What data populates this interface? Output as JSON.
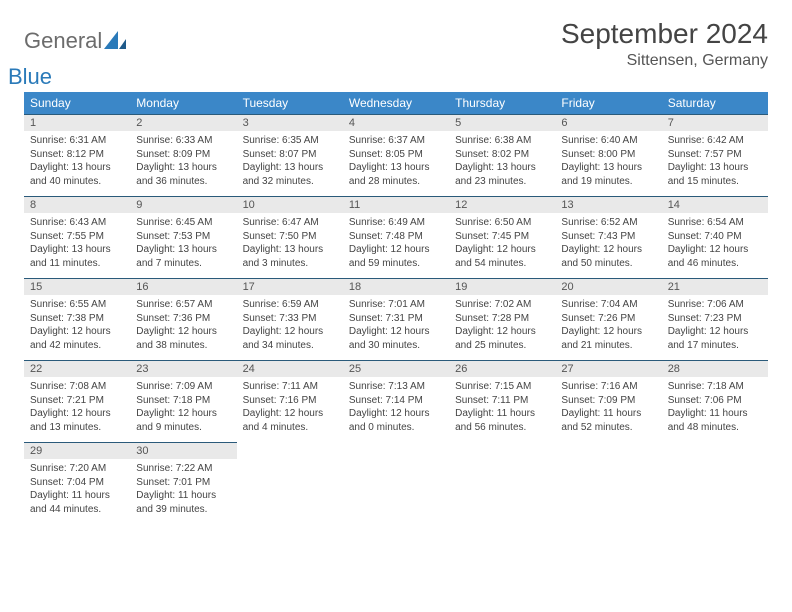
{
  "logo": {
    "text1": "General",
    "text2": "Blue"
  },
  "title": "September 2024",
  "location": "Sittensen, Germany",
  "colors": {
    "header_bg": "#3b87c8",
    "header_text": "#ffffff",
    "daynum_bg": "#e9e9e9",
    "daynum_border": "#2a5a7a",
    "logo_gray": "#6c6c6c",
    "logo_blue": "#2a7ab9"
  },
  "weekdays": [
    "Sunday",
    "Monday",
    "Tuesday",
    "Wednesday",
    "Thursday",
    "Friday",
    "Saturday"
  ],
  "weeks": [
    [
      {
        "n": "1",
        "sr": "Sunrise: 6:31 AM",
        "ss": "Sunset: 8:12 PM",
        "d1": "Daylight: 13 hours",
        "d2": "and 40 minutes."
      },
      {
        "n": "2",
        "sr": "Sunrise: 6:33 AM",
        "ss": "Sunset: 8:09 PM",
        "d1": "Daylight: 13 hours",
        "d2": "and 36 minutes."
      },
      {
        "n": "3",
        "sr": "Sunrise: 6:35 AM",
        "ss": "Sunset: 8:07 PM",
        "d1": "Daylight: 13 hours",
        "d2": "and 32 minutes."
      },
      {
        "n": "4",
        "sr": "Sunrise: 6:37 AM",
        "ss": "Sunset: 8:05 PM",
        "d1": "Daylight: 13 hours",
        "d2": "and 28 minutes."
      },
      {
        "n": "5",
        "sr": "Sunrise: 6:38 AM",
        "ss": "Sunset: 8:02 PM",
        "d1": "Daylight: 13 hours",
        "d2": "and 23 minutes."
      },
      {
        "n": "6",
        "sr": "Sunrise: 6:40 AM",
        "ss": "Sunset: 8:00 PM",
        "d1": "Daylight: 13 hours",
        "d2": "and 19 minutes."
      },
      {
        "n": "7",
        "sr": "Sunrise: 6:42 AM",
        "ss": "Sunset: 7:57 PM",
        "d1": "Daylight: 13 hours",
        "d2": "and 15 minutes."
      }
    ],
    [
      {
        "n": "8",
        "sr": "Sunrise: 6:43 AM",
        "ss": "Sunset: 7:55 PM",
        "d1": "Daylight: 13 hours",
        "d2": "and 11 minutes."
      },
      {
        "n": "9",
        "sr": "Sunrise: 6:45 AM",
        "ss": "Sunset: 7:53 PM",
        "d1": "Daylight: 13 hours",
        "d2": "and 7 minutes."
      },
      {
        "n": "10",
        "sr": "Sunrise: 6:47 AM",
        "ss": "Sunset: 7:50 PM",
        "d1": "Daylight: 13 hours",
        "d2": "and 3 minutes."
      },
      {
        "n": "11",
        "sr": "Sunrise: 6:49 AM",
        "ss": "Sunset: 7:48 PM",
        "d1": "Daylight: 12 hours",
        "d2": "and 59 minutes."
      },
      {
        "n": "12",
        "sr": "Sunrise: 6:50 AM",
        "ss": "Sunset: 7:45 PM",
        "d1": "Daylight: 12 hours",
        "d2": "and 54 minutes."
      },
      {
        "n": "13",
        "sr": "Sunrise: 6:52 AM",
        "ss": "Sunset: 7:43 PM",
        "d1": "Daylight: 12 hours",
        "d2": "and 50 minutes."
      },
      {
        "n": "14",
        "sr": "Sunrise: 6:54 AM",
        "ss": "Sunset: 7:40 PM",
        "d1": "Daylight: 12 hours",
        "d2": "and 46 minutes."
      }
    ],
    [
      {
        "n": "15",
        "sr": "Sunrise: 6:55 AM",
        "ss": "Sunset: 7:38 PM",
        "d1": "Daylight: 12 hours",
        "d2": "and 42 minutes."
      },
      {
        "n": "16",
        "sr": "Sunrise: 6:57 AM",
        "ss": "Sunset: 7:36 PM",
        "d1": "Daylight: 12 hours",
        "d2": "and 38 minutes."
      },
      {
        "n": "17",
        "sr": "Sunrise: 6:59 AM",
        "ss": "Sunset: 7:33 PM",
        "d1": "Daylight: 12 hours",
        "d2": "and 34 minutes."
      },
      {
        "n": "18",
        "sr": "Sunrise: 7:01 AM",
        "ss": "Sunset: 7:31 PM",
        "d1": "Daylight: 12 hours",
        "d2": "and 30 minutes."
      },
      {
        "n": "19",
        "sr": "Sunrise: 7:02 AM",
        "ss": "Sunset: 7:28 PM",
        "d1": "Daylight: 12 hours",
        "d2": "and 25 minutes."
      },
      {
        "n": "20",
        "sr": "Sunrise: 7:04 AM",
        "ss": "Sunset: 7:26 PM",
        "d1": "Daylight: 12 hours",
        "d2": "and 21 minutes."
      },
      {
        "n": "21",
        "sr": "Sunrise: 7:06 AM",
        "ss": "Sunset: 7:23 PM",
        "d1": "Daylight: 12 hours",
        "d2": "and 17 minutes."
      }
    ],
    [
      {
        "n": "22",
        "sr": "Sunrise: 7:08 AM",
        "ss": "Sunset: 7:21 PM",
        "d1": "Daylight: 12 hours",
        "d2": "and 13 minutes."
      },
      {
        "n": "23",
        "sr": "Sunrise: 7:09 AM",
        "ss": "Sunset: 7:18 PM",
        "d1": "Daylight: 12 hours",
        "d2": "and 9 minutes."
      },
      {
        "n": "24",
        "sr": "Sunrise: 7:11 AM",
        "ss": "Sunset: 7:16 PM",
        "d1": "Daylight: 12 hours",
        "d2": "and 4 minutes."
      },
      {
        "n": "25",
        "sr": "Sunrise: 7:13 AM",
        "ss": "Sunset: 7:14 PM",
        "d1": "Daylight: 12 hours",
        "d2": "and 0 minutes."
      },
      {
        "n": "26",
        "sr": "Sunrise: 7:15 AM",
        "ss": "Sunset: 7:11 PM",
        "d1": "Daylight: 11 hours",
        "d2": "and 56 minutes."
      },
      {
        "n": "27",
        "sr": "Sunrise: 7:16 AM",
        "ss": "Sunset: 7:09 PM",
        "d1": "Daylight: 11 hours",
        "d2": "and 52 minutes."
      },
      {
        "n": "28",
        "sr": "Sunrise: 7:18 AM",
        "ss": "Sunset: 7:06 PM",
        "d1": "Daylight: 11 hours",
        "d2": "and 48 minutes."
      }
    ],
    [
      {
        "n": "29",
        "sr": "Sunrise: 7:20 AM",
        "ss": "Sunset: 7:04 PM",
        "d1": "Daylight: 11 hours",
        "d2": "and 44 minutes."
      },
      {
        "n": "30",
        "sr": "Sunrise: 7:22 AM",
        "ss": "Sunset: 7:01 PM",
        "d1": "Daylight: 11 hours",
        "d2": "and 39 minutes."
      },
      null,
      null,
      null,
      null,
      null
    ]
  ]
}
